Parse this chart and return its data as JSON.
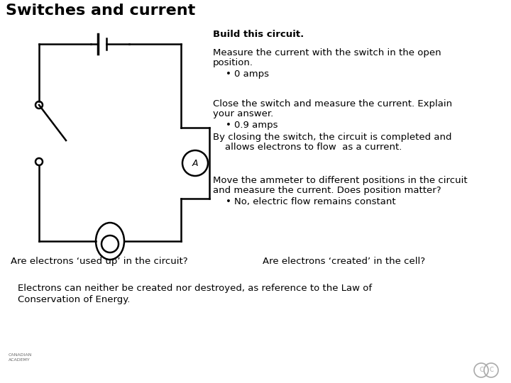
{
  "title": "Switches and current",
  "background_color": "#ffffff",
  "text_color": "#000000",
  "build_text": "Build this circuit.",
  "para1_line1": "Measure the current with the switch in the open",
  "para1_line2": "position.",
  "para1_bullet": "0 amps",
  "para2_line1": "Close the switch and measure the current. Explain",
  "para2_line2": "your answer.",
  "para2_bullet": "0.9 amps",
  "para2_line3": "By closing the switch, the circuit is completed and",
  "para2_line4": "    allows electrons to flow  as a current.",
  "para3_line1": "Move the ammeter to different positions in the circuit",
  "para3_line2": "and measure the current. Does position matter?",
  "para3_bullet": "No, electric flow remains constant",
  "question1": "Are electrons ‘used up’ in the circuit?",
  "question2": "Are electrons ‘created’ in the cell?",
  "footer_line1": "Electrons can neither be created nor destroyed, as reference to the Law of",
  "footer_line2": "Conservation of Energy."
}
